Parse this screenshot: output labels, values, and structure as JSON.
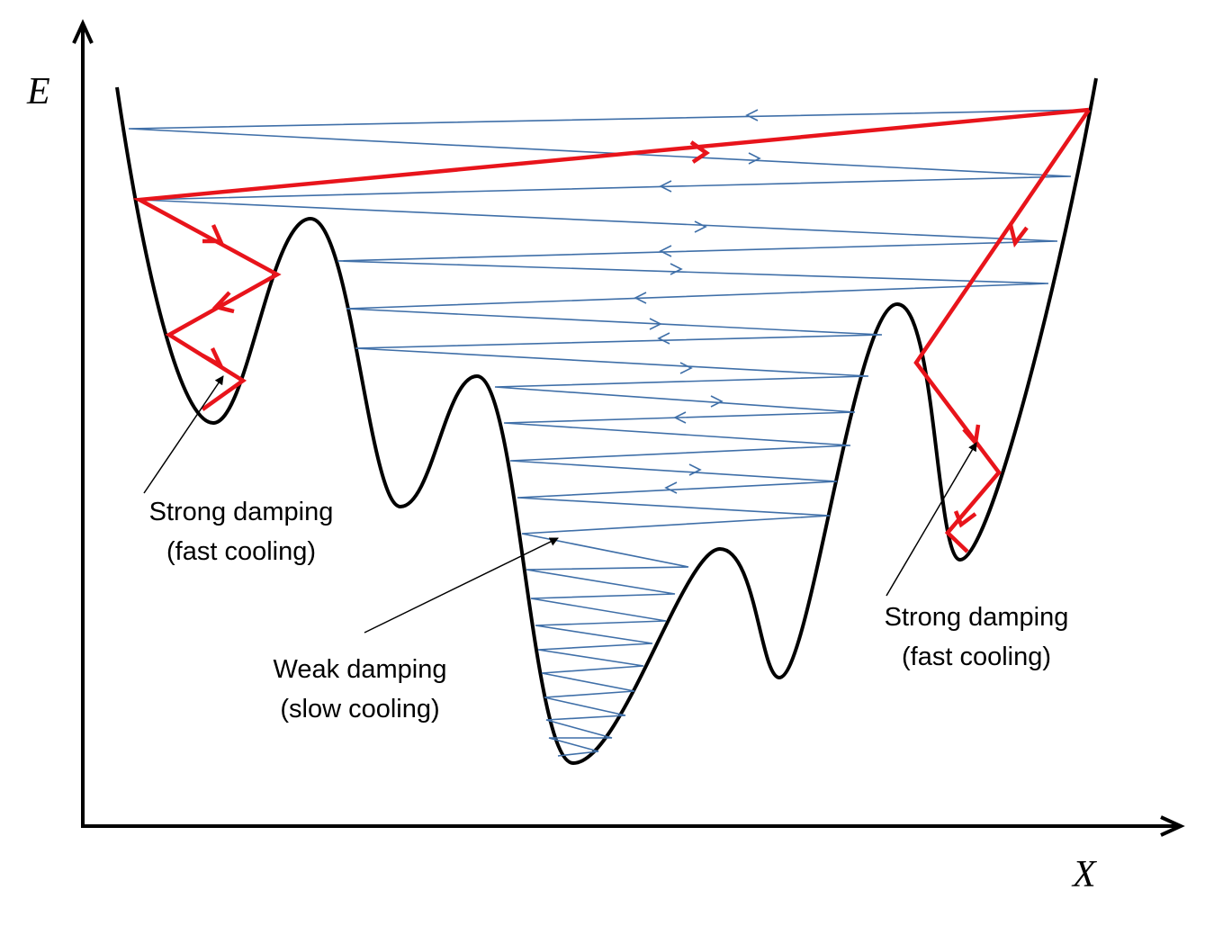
{
  "axes": {
    "y_label": "E",
    "x_label": "X"
  },
  "annotations": [
    {
      "lines": [
        "Strong damping",
        "(fast cooling)"
      ]
    },
    {
      "lines": [
        "Weak damping",
        "(slow cooling)"
      ]
    },
    {
      "lines": [
        "Strong damping",
        "(fast cooling)"
      ]
    }
  ]
}
